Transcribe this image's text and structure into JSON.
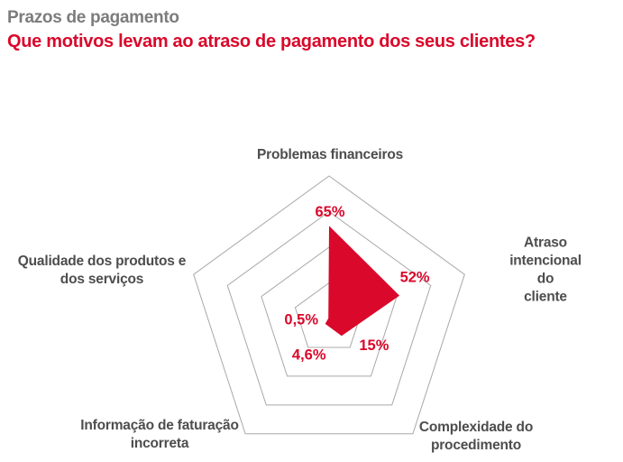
{
  "header": {
    "kicker": "Prazos de pagamento",
    "title": "Que motivos levam ao atraso de pagamento dos seus clientes?"
  },
  "chart_data": {
    "type": "radar",
    "title": "Que motivos levam ao atraso de pagamento dos seus clientes?",
    "shape": "pentagon",
    "max": 100,
    "rings_percent": [
      25,
      50,
      75,
      100
    ],
    "grid": "concentric-pentagons",
    "legend": "none",
    "categories": [
      "Problemas financeiros",
      "Atraso intencional do\ncliente",
      "Complexidade do\nprocedimento",
      "Informação de faturação\nincorreta",
      "Qualidade dos produtos e\ndos serviços"
    ],
    "values": [
      65,
      52,
      15,
      4.6,
      0.5
    ],
    "value_labels": [
      "65%",
      "52%",
      "15%",
      "4,6%",
      "0,5%"
    ],
    "colors": {
      "background": "#ffffff",
      "series_fill": "#da082b",
      "value_label": "#da082b",
      "title": "#da082b",
      "kicker": "#7c7c7c",
      "category_label": "#4d4d4d",
      "grid": "#a8a8a8"
    }
  }
}
